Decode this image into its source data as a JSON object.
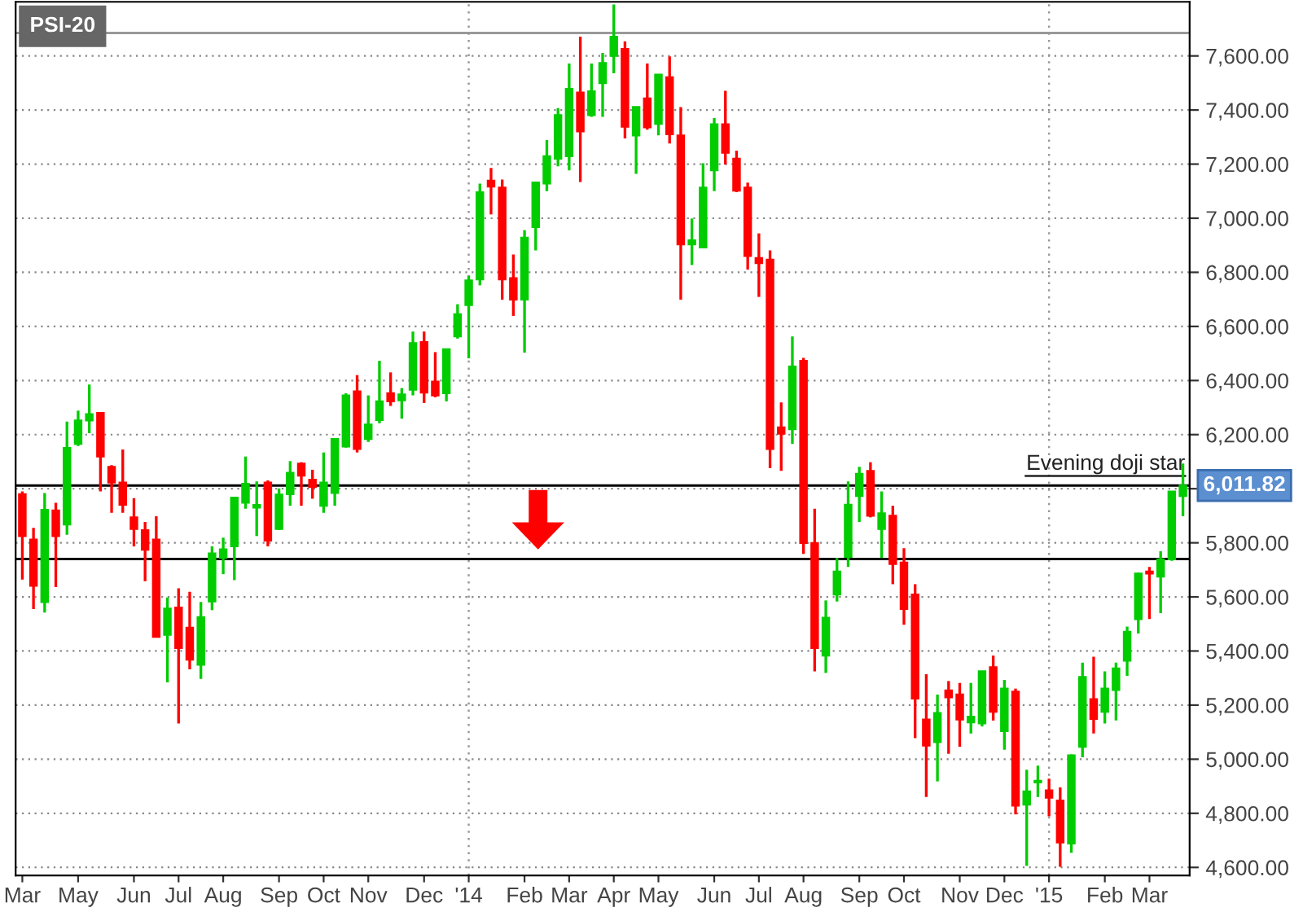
{
  "chart_data": {
    "type": "candlestick",
    "title": "PSI-20",
    "categories": [
      "Mar",
      null,
      null,
      null,
      null,
      "May",
      null,
      null,
      null,
      null,
      "Jun",
      null,
      null,
      null,
      "Jul",
      null,
      null,
      null,
      "Aug",
      null,
      null,
      null,
      null,
      "Sep",
      null,
      null,
      null,
      "Oct",
      null,
      null,
      null,
      "Nov",
      null,
      null,
      null,
      null,
      "Dec",
      null,
      null,
      null,
      "'14",
      null,
      null,
      null,
      null,
      "Feb",
      null,
      null,
      null,
      "Mar",
      null,
      null,
      null,
      "Apr",
      null,
      null,
      null,
      "May",
      null,
      null,
      null,
      null,
      "Jun",
      null,
      null,
      null,
      "Jul",
      null,
      null,
      null,
      "Aug",
      null,
      null,
      null,
      null,
      "Sep",
      null,
      null,
      null,
      "Oct",
      null,
      null,
      null,
      null,
      "Nov",
      null,
      null,
      null,
      "Dec",
      null,
      null,
      null,
      "'15",
      null,
      null,
      null,
      null,
      "Feb",
      null,
      null,
      null,
      "Mar",
      null,
      null,
      null
    ],
    "ohlc": [
      [
        5980,
        5990,
        5664,
        5825
      ],
      [
        5812,
        5855,
        5555,
        5641
      ],
      [
        5581,
        5984,
        5542,
        5922
      ],
      [
        5920,
        5948,
        5636,
        5825
      ],
      [
        5868,
        6248,
        5830,
        6151
      ],
      [
        6166,
        6289,
        6158,
        6252
      ],
      [
        6252,
        6385,
        6205,
        6276
      ],
      [
        6280,
        6280,
        5990,
        6119
      ],
      [
        6081,
        6087,
        5911,
        6023
      ],
      [
        6023,
        6145,
        5911,
        5941
      ],
      [
        5894,
        5965,
        5787,
        5851
      ],
      [
        5847,
        5877,
        5658,
        5774
      ],
      [
        5812,
        5898,
        5452,
        5452
      ],
      [
        5460,
        5598,
        5284,
        5557
      ],
      [
        5561,
        5632,
        5132,
        5411
      ],
      [
        5486,
        5619,
        5332,
        5368
      ],
      [
        5349,
        5581,
        5297,
        5525
      ],
      [
        5583,
        5787,
        5551,
        5761
      ],
      [
        5744,
        5819,
        5684,
        5776
      ],
      [
        5787,
        5967,
        5662,
        5967
      ],
      [
        5948,
        6119,
        5926,
        6018
      ],
      [
        5930,
        6027,
        5825,
        5940
      ],
      [
        6023,
        6031,
        5787,
        5808
      ],
      [
        5851,
        6001,
        5847,
        5978
      ],
      [
        5980,
        6102,
        5937,
        6059
      ],
      [
        6093,
        6098,
        5937,
        6048
      ],
      [
        6033,
        6070,
        5963,
        6006
      ],
      [
        5937,
        6134,
        5911,
        6023
      ],
      [
        5984,
        6184,
        5937,
        6184
      ],
      [
        6156,
        6353,
        6152,
        6345
      ],
      [
        6360,
        6420,
        6134,
        6147
      ],
      [
        6184,
        6345,
        6173,
        6237
      ],
      [
        6254,
        6473,
        6242,
        6323
      ],
      [
        6353,
        6430,
        6306,
        6323
      ],
      [
        6327,
        6372,
        6259,
        6349
      ],
      [
        6366,
        6581,
        6345,
        6538
      ],
      [
        6542,
        6581,
        6317,
        6355
      ],
      [
        6396,
        6505,
        6338,
        6345
      ],
      [
        6353,
        6516,
        6323,
        6516
      ],
      [
        6563,
        6682,
        6555,
        6645
      ],
      [
        6679,
        6787,
        6482,
        6770
      ],
      [
        6774,
        7128,
        6752,
        7096
      ],
      [
        7139,
        7186,
        7014,
        7117
      ],
      [
        7113,
        7143,
        6699,
        6774
      ],
      [
        6778,
        6866,
        6639,
        6699
      ],
      [
        6699,
        6956,
        6503,
        6928
      ],
      [
        6967,
        7132,
        6881,
        7132
      ],
      [
        7128,
        7289,
        7100,
        7229
      ],
      [
        7220,
        7407,
        7192,
        7381
      ],
      [
        7229,
        7572,
        7177,
        7478
      ],
      [
        7465,
        7671,
        7134,
        7321
      ],
      [
        7381,
        7572,
        7375,
        7469
      ],
      [
        7499,
        7611,
        7375,
        7574
      ],
      [
        7600,
        7790,
        7536,
        7671
      ],
      [
        7626,
        7654,
        7295,
        7338
      ],
      [
        7306,
        7411,
        7164,
        7411
      ],
      [
        7443,
        7572,
        7327,
        7336
      ],
      [
        7349,
        7531,
        7306,
        7531
      ],
      [
        7521,
        7598,
        7276,
        7310
      ],
      [
        7306,
        7411,
        6699,
        6903
      ],
      [
        6903,
        6999,
        6827,
        6918
      ],
      [
        6892,
        7203,
        6892,
        7113
      ],
      [
        7177,
        7370,
        7100,
        7347
      ],
      [
        7347,
        7471,
        7199,
        7242
      ],
      [
        7220,
        7250,
        7096,
        7102
      ],
      [
        7113,
        7132,
        6810,
        6860
      ],
      [
        6853,
        6944,
        6709,
        6834
      ],
      [
        6847,
        6881,
        6076,
        6147
      ],
      [
        6227,
        6319,
        6066,
        6203
      ],
      [
        6220,
        6563,
        6166,
        6452
      ],
      [
        6473,
        6484,
        5759,
        5799
      ],
      [
        5799,
        5926,
        5325,
        5411
      ],
      [
        5383,
        5587,
        5319,
        5523
      ],
      [
        5609,
        5744,
        5583,
        5694
      ],
      [
        5748,
        6027,
        5711,
        5941
      ],
      [
        5973,
        6081,
        5877,
        6055
      ],
      [
        6066,
        6098,
        5894,
        5900
      ],
      [
        5851,
        5990,
        5744,
        5909
      ],
      [
        5900,
        5937,
        5647,
        5722
      ],
      [
        5727,
        5780,
        5497,
        5555
      ],
      [
        5609,
        5647,
        5078,
        5224
      ],
      [
        5147,
        5314,
        4860,
        5050
      ],
      [
        5063,
        5239,
        4918,
        5171
      ],
      [
        5254,
        5289,
        5020,
        5229
      ],
      [
        5239,
        5282,
        5046,
        5147
      ],
      [
        5136,
        5282,
        5095,
        5157
      ],
      [
        5132,
        5325,
        5121,
        5325
      ],
      [
        5340,
        5383,
        5143,
        5175
      ],
      [
        5104,
        5293,
        5035,
        5261
      ],
      [
        5250,
        5261,
        4796,
        4828
      ],
      [
        4832,
        4961,
        4606,
        4881
      ],
      [
        4914,
        4976,
        4860,
        4920
      ],
      [
        4885,
        4928,
        4789,
        4858
      ],
      [
        4847,
        4896,
        4602,
        4692
      ],
      [
        4688,
        5018,
        4654,
        5014
      ],
      [
        5046,
        5357,
        5007,
        5304
      ],
      [
        5222,
        5379,
        5095,
        5149
      ],
      [
        5175,
        5325,
        5132,
        5261
      ],
      [
        5256,
        5357,
        5143,
        5336
      ],
      [
        5364,
        5490,
        5308,
        5471
      ],
      [
        5518,
        5690,
        5465,
        5686
      ],
      [
        5694,
        5711,
        5518,
        5686
      ],
      [
        5675,
        5769,
        5540,
        5739
      ],
      [
        5739,
        5990,
        5733,
        5990
      ],
      [
        5973,
        6093,
        5898,
        6011.82
      ]
    ],
    "colors": [
      "#ff0000",
      "#ff0000",
      "#00cc00",
      "#ff0000",
      "#00cc00",
      "#00cc00",
      "#00cc00",
      "#ff0000",
      "#ff0000",
      "#ff0000",
      "#ff0000",
      "#ff0000",
      "#ff0000",
      "#00cc00",
      "#ff0000",
      "#ff0000",
      "#00cc00",
      "#00cc00",
      "#00cc00",
      "#00cc00",
      "#00cc00",
      "#00cc00",
      "#ff0000",
      "#00cc00",
      "#00cc00",
      "#ff0000",
      "#ff0000",
      "#00cc00",
      "#00cc00",
      "#00cc00",
      "#ff0000",
      "#00cc00",
      "#00cc00",
      "#ff0000",
      "#00cc00",
      "#00cc00",
      "#ff0000",
      "#ff0000",
      "#00cc00",
      "#00cc00",
      "#00cc00",
      "#00cc00",
      "#ff0000",
      "#ff0000",
      "#ff0000",
      "#00cc00",
      "#00cc00",
      "#00cc00",
      "#00cc00",
      "#00cc00",
      "#ff0000",
      "#00cc00",
      "#00cc00",
      "#00cc00",
      "#ff0000",
      "#00cc00",
      "#ff0000",
      "#00cc00",
      "#ff0000",
      "#ff0000",
      "#00cc00",
      "#00cc00",
      "#00cc00",
      "#ff0000",
      "#ff0000",
      "#ff0000",
      "#ff0000",
      "#ff0000",
      "#ff0000",
      "#00cc00",
      "#ff0000",
      "#ff0000",
      "#00cc00",
      "#00cc00",
      "#00cc00",
      "#00cc00",
      "#ff0000",
      "#00cc00",
      "#ff0000",
      "#ff0000",
      "#ff0000",
      "#ff0000",
      "#00cc00",
      "#ff0000",
      "#ff0000",
      "#00cc00",
      "#00cc00",
      "#ff0000",
      "#00cc00",
      "#ff0000",
      "#00cc00",
      "#00cc00",
      "#ff0000",
      "#ff0000",
      "#00cc00",
      "#00cc00",
      "#ff0000",
      "#00cc00",
      "#00cc00",
      "#00cc00",
      "#00cc00",
      "#ff0000",
      "#00cc00",
      "#00cc00",
      "#00cc00"
    ],
    "ylim": [
      4570,
      7800
    ],
    "yticks": [
      {
        "value": 4600,
        "label": "4,600.00"
      },
      {
        "value": 4800,
        "label": "4,800.00"
      },
      {
        "value": 5000,
        "label": "5,000.00"
      },
      {
        "value": 5200,
        "label": "5,200.00"
      },
      {
        "value": 5400,
        "label": "5,400.00"
      },
      {
        "value": 5600,
        "label": "5,600.00"
      },
      {
        "value": 5800,
        "label": "5,800.00"
      },
      {
        "value": 6000,
        "label": null
      },
      {
        "value": 6200,
        "label": "6,200.00"
      },
      {
        "value": 6400,
        "label": "6,400.00"
      },
      {
        "value": 6600,
        "label": "6,600.00"
      },
      {
        "value": 6800,
        "label": "6,800.00"
      },
      {
        "value": 7000,
        "label": "7,000.00"
      },
      {
        "value": 7200,
        "label": "7,200.00"
      },
      {
        "value": 7400,
        "label": "7,400.00"
      },
      {
        "value": 7600,
        "label": "7,600.00"
      }
    ],
    "grid": "y",
    "ref_lines": [
      {
        "axis": "y",
        "value": 6011.82,
        "label": "Evening doji star",
        "color": "#000000",
        "line_style": "solid"
      },
      {
        "axis": "y",
        "value": 5740,
        "color": "#000000",
        "line_style": "solid"
      },
      {
        "axis": "y",
        "value": 7685,
        "color": "#999999",
        "line_style": "solid"
      },
      {
        "axis": "x",
        "value": "'14",
        "color": "#999999",
        "line_style": "dotted"
      },
      {
        "axis": "x",
        "value": "'15",
        "color": "#999999",
        "line_style": "dotted"
      }
    ],
    "annotations": [
      "6,011.82"
    ]
  }
}
